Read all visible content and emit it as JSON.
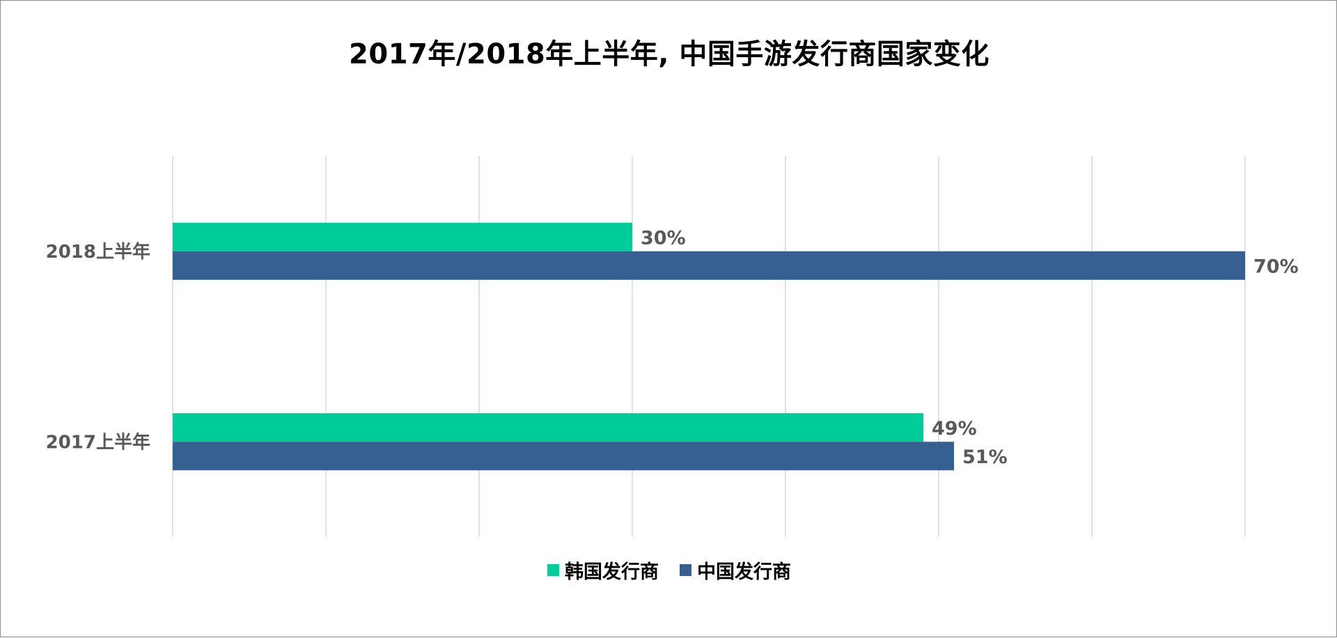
{
  "chart_data": {
    "type": "bar",
    "orientation": "horizontal",
    "title": "2017年/2018年上半年, 中国手游发行商国家变化",
    "categories": [
      "2018上半年",
      "2017上半年"
    ],
    "series": [
      {
        "name": "韩国发行商",
        "values": [
          30,
          49
        ],
        "labels": [
          "30%",
          "49%"
        ],
        "color": "#00CC99"
      },
      {
        "name": "中国发行商",
        "values": [
          70,
          51
        ],
        "labels": [
          "70%",
          "51%"
        ],
        "color": "#376092"
      }
    ],
    "xlim": [
      0,
      70
    ],
    "grid": true,
    "legend_position": "bottom",
    "value_unit": "%"
  }
}
